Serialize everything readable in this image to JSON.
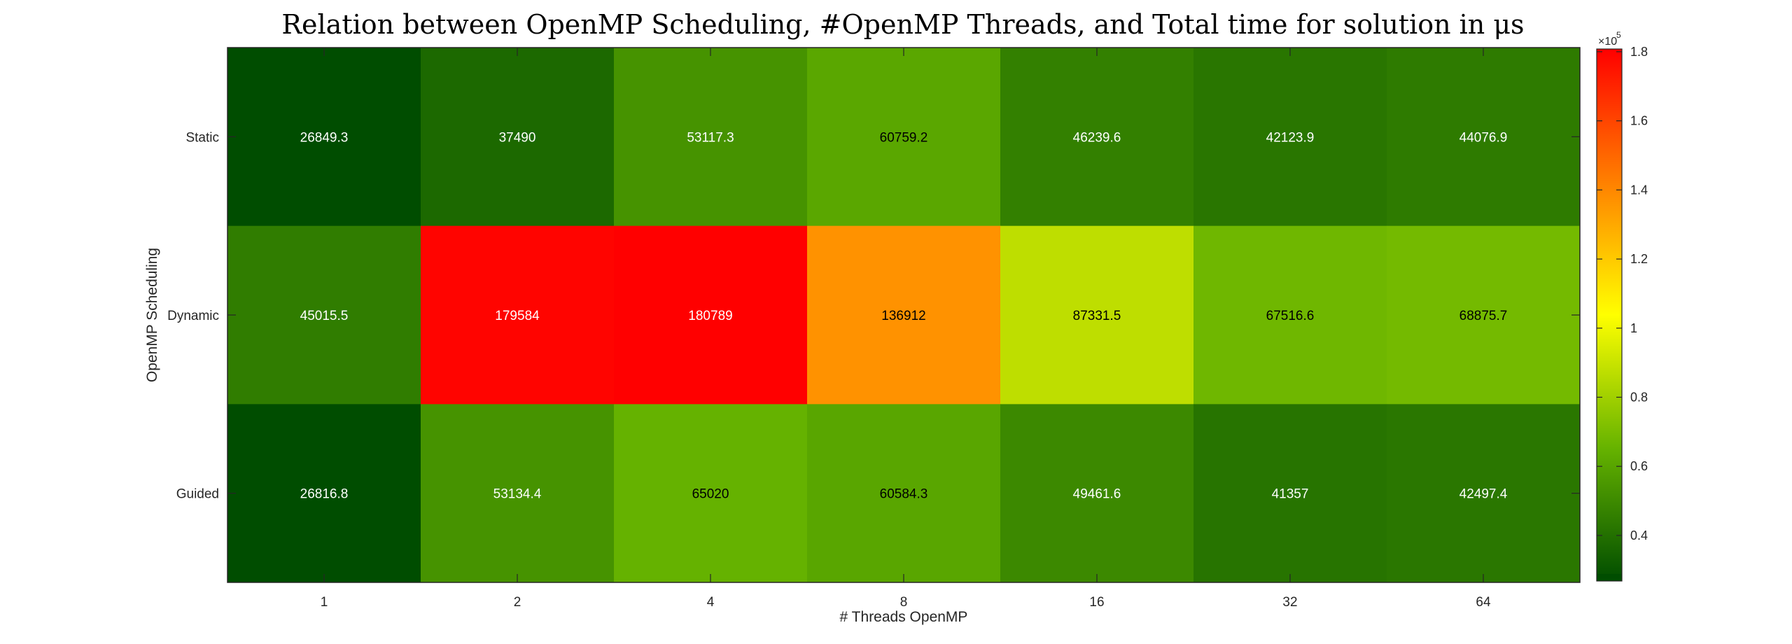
{
  "chart_data": {
    "type": "heatmap",
    "title": "Relation between OpenMP Scheduling, #OpenMP Threads, and Total time for solution in μs",
    "xlabel": "# Threads OpenMP",
    "ylabel": "OpenMP Scheduling",
    "x_categories": [
      "1",
      "2",
      "4",
      "8",
      "16",
      "32",
      "64"
    ],
    "y_categories": [
      "Static",
      "Dynamic",
      "Guided"
    ],
    "values": [
      [
        26849.3,
        37490,
        53117.3,
        60759.2,
        46239.6,
        42123.9,
        44076.9
      ],
      [
        45015.5,
        179584,
        180789,
        136912,
        87331.5,
        67516.6,
        68875.7
      ],
      [
        26816.8,
        53134.4,
        65020,
        60584.3,
        49461.6,
        41357,
        42497.4
      ]
    ],
    "value_labels": [
      [
        "26849.3",
        "37490",
        "53117.3",
        "60759.2",
        "46239.6",
        "42123.9",
        "44076.9"
      ],
      [
        "45015.5",
        "179584",
        "180789",
        "136912",
        "87331.5",
        "67516.6",
        "68875.7"
      ],
      [
        "26816.8",
        "53134.4",
        "65020",
        "60584.3",
        "49461.6",
        "41357",
        "42497.4"
      ]
    ],
    "colorbar": {
      "range": [
        26816.8,
        180789
      ],
      "ticks": [
        40000,
        60000,
        80000,
        100000,
        120000,
        140000,
        160000,
        180000
      ],
      "tick_labels": [
        "0.4",
        "0.6",
        "0.8",
        "1",
        "1.2",
        "1.4",
        "1.6",
        "1.8"
      ],
      "exponent_base": "×10",
      "exponent_power": "5",
      "colormap": [
        "#004d00",
        "#66b300",
        "#ffff00",
        "#ff8000",
        "#ff0000"
      ]
    }
  }
}
